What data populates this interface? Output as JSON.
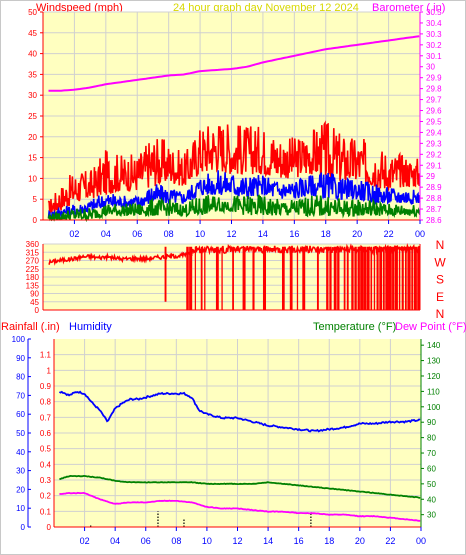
{
  "header": {
    "left_title": "Windspeed (mph)",
    "center_title": "24 hour graph day   November 12 2024",
    "right_title": "Barometer ( in)"
  },
  "wind_direction": {
    "compass_labels": [
      "N",
      "W",
      "S",
      "E",
      "N"
    ]
  },
  "bottom_header": {
    "rainfall_label": "Rainfall (.in)",
    "humidity_label": "Humidity",
    "temperature_label": "Temperature (°F)",
    "dewpoint_label": "Dew Point (°F)"
  },
  "colors": {
    "plot_bg": "#ffffc0",
    "frame": "#c8c8c8",
    "wind_gust": "#ff0000",
    "wind_avg": "#0000ff",
    "wind_low": "#008000",
    "barometer": "#ff00ff",
    "direction": "#ff0000",
    "humidity": "#0000ff",
    "temperature": "#008000",
    "dewpoint": "#ff00ff",
    "rain": "#000000",
    "header_red": "#ff0000",
    "header_yellow": "#d8d800",
    "header_magenta": "#ff00ff",
    "header_blue": "#0000ff",
    "header_green": "#008000"
  },
  "chart_data": [
    {
      "type": "line",
      "title": "24 hour graph day   November 12 2024",
      "x_ticks": [
        "02",
        "04",
        "06",
        "08",
        "10",
        "12",
        "14",
        "16",
        "18",
        "20",
        "22",
        "00"
      ],
      "y_left_label": "Windspeed (mph)",
      "y_left_ticks": [
        0,
        5,
        10,
        15,
        20,
        25,
        30,
        35,
        40,
        45,
        50
      ],
      "ylim_left": [
        0,
        50
      ],
      "y_right_label": "Barometer ( in)",
      "y_right_ticks": [
        "28.6",
        "28.7",
        "28.8",
        "28.9",
        "29",
        "29.1",
        "29.2",
        "29.3",
        "29.4",
        "29.5",
        "29.6",
        "29.7",
        "29.8",
        "29.9",
        "30",
        "30.1",
        "30.2",
        "30.3",
        "30.4",
        "30.5"
      ],
      "ylim_right": [
        28.6,
        30.5
      ],
      "xlim_hours": [
        0,
        24
      ],
      "wind_envelopes": [
        {
          "name": "gust",
          "color_key": "wind_gust",
          "hours": [
            0,
            1,
            2,
            3,
            4,
            5,
            6,
            7,
            8,
            9,
            10,
            11,
            12,
            13,
            14,
            15,
            16,
            17,
            18,
            19,
            20,
            21,
            22,
            23,
            24
          ],
          "base": [
            1,
            2,
            4,
            5,
            6,
            7,
            7,
            8,
            9,
            8,
            11,
            12,
            11,
            11,
            11,
            10,
            10,
            11,
            10,
            9,
            9,
            8,
            7,
            8,
            8
          ],
          "peak": [
            3,
            8,
            12,
            12,
            17,
            16,
            16,
            21,
            19,
            16,
            23,
            25,
            24,
            23,
            23,
            21,
            20,
            22,
            24,
            21,
            20,
            19,
            17,
            16,
            15
          ]
        },
        {
          "name": "average",
          "color_key": "wind_avg",
          "hours": [
            0,
            1,
            2,
            3,
            4,
            5,
            6,
            7,
            8,
            9,
            10,
            11,
            12,
            13,
            14,
            15,
            16,
            17,
            18,
            19,
            20,
            21,
            22,
            23,
            24
          ],
          "base": [
            0,
            1,
            1,
            2,
            3,
            3,
            3,
            4,
            4,
            4,
            6,
            6,
            6,
            5,
            6,
            5,
            5,
            6,
            5,
            5,
            5,
            4,
            4,
            4,
            4
          ],
          "peak": [
            2,
            3,
            4,
            5,
            7,
            6,
            6,
            9,
            8,
            7,
            11,
            12,
            12,
            11,
            11,
            10,
            10,
            11,
            12,
            10,
            10,
            9,
            8,
            8,
            7
          ]
        },
        {
          "name": "low",
          "color_key": "wind_low",
          "hours": [
            0,
            1,
            2,
            3,
            4,
            5,
            6,
            7,
            8,
            9,
            10,
            11,
            12,
            13,
            14,
            15,
            16,
            17,
            18,
            19,
            20,
            21,
            22,
            23,
            24
          ],
          "base": [
            0,
            0,
            0,
            0,
            1,
            1,
            1,
            1,
            1,
            1,
            1,
            2,
            2,
            1,
            1,
            1,
            1,
            1,
            1,
            1,
            1,
            1,
            1,
            1,
            1
          ],
          "peak": [
            1,
            2,
            3,
            3,
            4,
            4,
            4,
            5,
            5,
            4,
            6,
            6,
            6,
            6,
            6,
            5,
            5,
            6,
            6,
            5,
            5,
            5,
            4,
            4,
            4
          ]
        }
      ],
      "barometer": {
        "hours": [
          0,
          1,
          2,
          3,
          4,
          5,
          6,
          7,
          8,
          9,
          10,
          11,
          12,
          13,
          14,
          15,
          16,
          17,
          18,
          19,
          20,
          21,
          22,
          23,
          24
        ],
        "values": [
          29.78,
          29.78,
          29.79,
          29.81,
          29.84,
          29.86,
          29.88,
          29.9,
          29.92,
          29.93,
          29.96,
          29.97,
          29.98,
          30.0,
          30.04,
          30.07,
          30.1,
          30.13,
          30.16,
          30.18,
          30.2,
          30.22,
          30.24,
          30.26,
          30.28
        ]
      }
    },
    {
      "type": "line",
      "title": "",
      "y_left_ticks": [
        0,
        45,
        90,
        135,
        180,
        225,
        270,
        315,
        360
      ],
      "ylim": [
        0,
        360
      ],
      "xlim_hours": [
        0,
        24
      ],
      "direction": {
        "hours": [
          0,
          0.5,
          1,
          1.5,
          2,
          2.5,
          3,
          3.5,
          4,
          4.5,
          5,
          5.5,
          6,
          6.5,
          7,
          7.5,
          8,
          8.5,
          9,
          9.5
        ],
        "degrees": [
          250,
          262,
          270,
          275,
          280,
          290,
          292,
          285,
          290,
          285,
          278,
          280,
          282,
          278,
          285,
          288,
          292,
          295,
          300,
          305
        ]
      },
      "direction_drops_hours": [
        7.8,
        9.2,
        9.4,
        9.7,
        10.1,
        10.3,
        11.1,
        11.4,
        12.1,
        12.8,
        13.4,
        14.1,
        15.3,
        15.8,
        16.2,
        16.6,
        17.5,
        18.1,
        18.3,
        18.6,
        18.8,
        19.2,
        19.4,
        19.7,
        19.9,
        20.1,
        20.3,
        20.5,
        20.7,
        20.9,
        21.1,
        21.3,
        21.5,
        21.7,
        21.9,
        22.1,
        22.3,
        22.5,
        22.7,
        22.9,
        23.1,
        23.3,
        23.5,
        23.7,
        23.9
      ],
      "direction_drop_bottoms": [
        45,
        0,
        0,
        0,
        0,
        0,
        0,
        0,
        0,
        0,
        0,
        0,
        0,
        0,
        0,
        0,
        0,
        0,
        0,
        0,
        0,
        0,
        0,
        0,
        0,
        0,
        0,
        0,
        0,
        0,
        0,
        0,
        0,
        0,
        0,
        0,
        0,
        0,
        0,
        0,
        0,
        0,
        0,
        0,
        0
      ]
    },
    {
      "type": "line",
      "title": "",
      "x_ticks": [
        "02",
        "04",
        "06",
        "08",
        "10",
        "12",
        "14",
        "16",
        "18",
        "20",
        "22",
        "00"
      ],
      "y_rain_label": "Rainfall (.in)",
      "y_rain_ticks": [
        "0",
        "0.1",
        "0.2",
        "0.3",
        "0.4",
        "0.5",
        "0.6",
        "0.7",
        "0.8",
        "0.9",
        "1",
        "1.1"
      ],
      "ylim_rain": [
        0,
        1.2
      ],
      "y_humidity_label": "Humidity",
      "y_humidity_ticks": [
        0,
        10,
        20,
        30,
        40,
        50,
        60,
        70,
        80,
        90,
        100
      ],
      "ylim_humidity": [
        0,
        100
      ],
      "y_temp_label": "Temperature (°F)",
      "y_temp_ticks": [
        30,
        40,
        50,
        60,
        70,
        80,
        90,
        100,
        110,
        120,
        130,
        140
      ],
      "ylim_temp": [
        22,
        144
      ],
      "xlim_hours": [
        0,
        24
      ],
      "series": [
        {
          "name": "Humidity",
          "color_key": "humidity",
          "axis": "humidity",
          "hours": [
            0,
            0.5,
            1,
            1.5,
            2,
            2.5,
            3,
            3.5,
            4,
            4.5,
            5,
            5.5,
            6,
            6.5,
            7,
            7.5,
            8,
            8.5,
            9,
            9.5,
            10,
            11,
            12,
            13,
            14,
            15,
            16,
            17,
            18,
            19,
            20,
            21,
            22,
            23,
            24
          ],
          "values": [
            71,
            72,
            70,
            72,
            71,
            66,
            62,
            56,
            63,
            66,
            68,
            68,
            69,
            70,
            71,
            71,
            71,
            71,
            69,
            62,
            60,
            58,
            58,
            56,
            54,
            53,
            52,
            51,
            52,
            53,
            55,
            55,
            56,
            56,
            57
          ]
        },
        {
          "name": "Temperature (°F)",
          "color_key": "temperature",
          "axis": "temp",
          "hours": [
            0,
            1,
            2,
            3,
            4,
            5,
            6,
            7,
            8,
            9,
            10,
            11,
            12,
            13,
            14,
            15,
            16,
            17,
            18,
            19,
            20,
            21,
            22,
            23,
            24
          ],
          "values": [
            52,
            55,
            55,
            54,
            52,
            51,
            51,
            51,
            51,
            51,
            50,
            50,
            50,
            50,
            51,
            50,
            49,
            48,
            47,
            46,
            45,
            44,
            43,
            42,
            41
          ]
        },
        {
          "name": "Dew Point (°F)",
          "color_key": "dewpoint",
          "axis": "temp",
          "hours": [
            0,
            1,
            2,
            3,
            4,
            5,
            6,
            7,
            8,
            9,
            10,
            11,
            12,
            13,
            14,
            15,
            16,
            17,
            18,
            19,
            20,
            21,
            22,
            23,
            24
          ],
          "values": [
            43,
            44,
            44,
            40,
            37,
            38,
            38,
            39,
            39,
            38,
            35,
            34,
            34,
            33,
            32,
            32,
            31,
            31,
            30,
            30,
            29,
            29,
            28,
            27,
            26
          ]
        }
      ],
      "rain_events": [
        {
          "hour": 2.4,
          "value": 0.01
        },
        {
          "hour": 6.8,
          "value": 0.1
        },
        {
          "hour": 8.5,
          "value": 0.05
        },
        {
          "hour": 16.8,
          "value": 0.09
        }
      ]
    }
  ]
}
